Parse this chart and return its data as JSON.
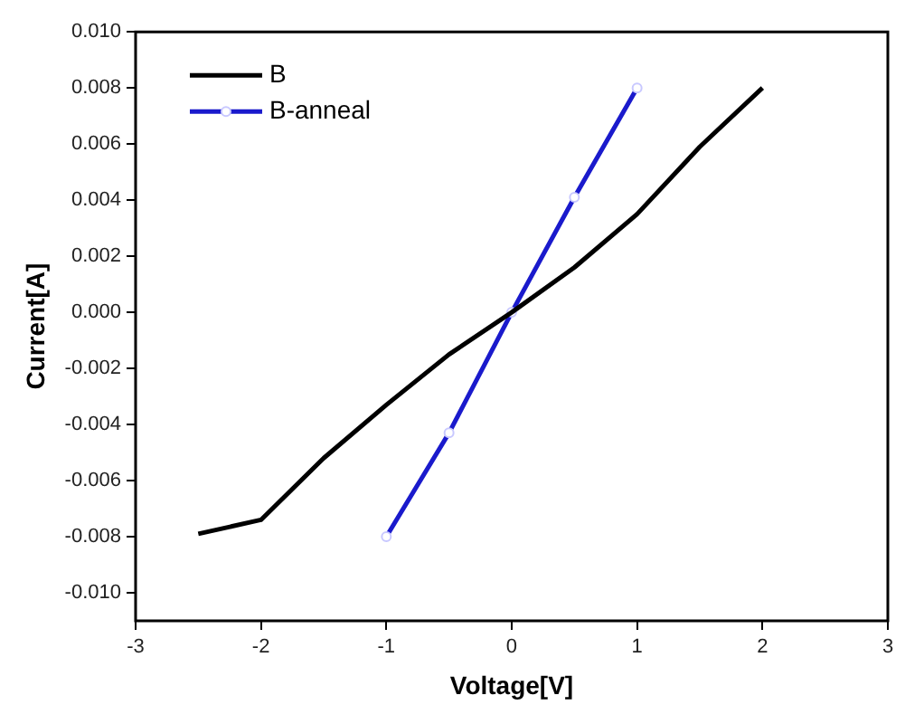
{
  "chart_data": {
    "type": "line",
    "xlabel": "Voltage[V]",
    "ylabel": "Current[A]",
    "xlim": [
      -3,
      3
    ],
    "xticks": [
      -3,
      -2,
      -1,
      0,
      1,
      2,
      3
    ],
    "ylim": [
      -0.011,
      0.01
    ],
    "yticks": [
      {
        "value": -0.01,
        "label": "-0.010"
      },
      -0.008,
      -0.006,
      -0.004,
      -0.002,
      {
        "value": 0,
        "label": "0.000"
      },
      0.002,
      0.004,
      0.006,
      0.008,
      {
        "value": 0.01,
        "label": "0.010"
      }
    ],
    "grid": false,
    "legend": "top left",
    "series": [
      {
        "name": "B",
        "color": "#000000",
        "marker": "none",
        "x": [
          -2.5,
          -2,
          -1.5,
          -1,
          -0.5,
          0,
          0.5,
          1,
          1.5,
          2
        ],
        "values": [
          -0.0079,
          -0.0074,
          -0.0052,
          -0.0033,
          -0.0015,
          0,
          0.0016,
          0.0035,
          0.0059,
          0.008
        ]
      },
      {
        "name": "B-anneal",
        "color": "#1a1acc",
        "marker": "circle",
        "x": [
          -1,
          -0.5,
          0,
          0.5,
          1
        ],
        "values": [
          -0.008,
          -0.0043,
          0,
          0.0041,
          0.008
        ]
      }
    ]
  }
}
